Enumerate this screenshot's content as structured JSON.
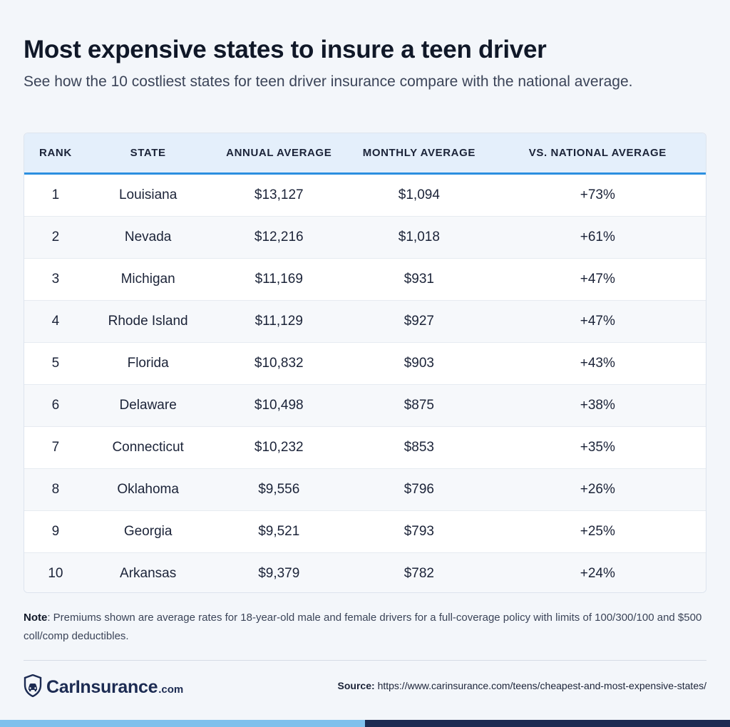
{
  "title": "Most expensive states to insure a teen driver",
  "subtitle": "See how the 10 costliest states for teen driver insurance compare with the national average.",
  "chart_data": {
    "type": "table",
    "columns": [
      "RANK",
      "STATE",
      "ANNUAL AVERAGE",
      "MONTHLY AVERAGE",
      "VS. NATIONAL AVERAGE"
    ],
    "rows": [
      [
        "1",
        "Louisiana",
        "$13,127",
        "$1,094",
        "+73%"
      ],
      [
        "2",
        "Nevada",
        "$12,216",
        "$1,018",
        "+61%"
      ],
      [
        "3",
        "Michigan",
        "$11,169",
        "$931",
        "+47%"
      ],
      [
        "4",
        "Rhode Island",
        "$11,129",
        "$927",
        "+47%"
      ],
      [
        "5",
        "Florida",
        "$10,832",
        "$903",
        "+43%"
      ],
      [
        "6",
        "Delaware",
        "$10,498",
        "$875",
        "+38%"
      ],
      [
        "7",
        "Connecticut",
        "$10,232",
        "$853",
        "+35%"
      ],
      [
        "8",
        "Oklahoma",
        "$9,556",
        "$796",
        "+26%"
      ],
      [
        "9",
        "Georgia",
        "$9,521",
        "$793",
        "+25%"
      ],
      [
        "10",
        "Arkansas",
        "$9,379",
        "$782",
        "+24%"
      ]
    ]
  },
  "note": {
    "label": "Note",
    "text": ": Premiums shown are average rates for 18-year-old male and female drivers for a full-coverage policy with limits of 100/300/100 and $500 coll/comp deductibles."
  },
  "logo": {
    "name": "CarInsurance",
    "domain": ".com",
    "icon": "shield-car-icon"
  },
  "source": {
    "label": "Source:",
    "url": "https://www.carinsurance.com/teens/cheapest-and-most-expensive-states/"
  },
  "colors": {
    "accent": "#2b8fe0",
    "header_bg": "#e4effb",
    "brand_dark": "#1c2b52",
    "brand_light": "#7fc0ec"
  }
}
